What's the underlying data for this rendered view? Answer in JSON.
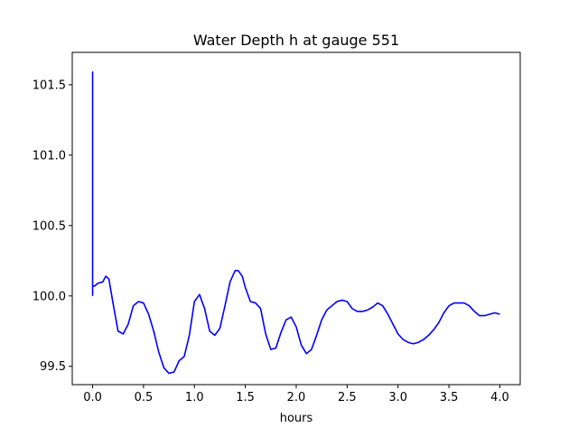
{
  "chart_data": {
    "type": "line",
    "title": "Water Depth h at gauge 551",
    "xlabel": "hours",
    "ylabel": "",
    "xlim": [
      -0.2,
      4.2
    ],
    "ylim": [
      99.37,
      101.73
    ],
    "xticks": [
      0.0,
      0.5,
      1.0,
      1.5,
      2.0,
      2.5,
      3.0,
      3.5,
      4.0
    ],
    "xtick_labels": [
      "0.0",
      "0.5",
      "1.0",
      "1.5",
      "2.0",
      "2.5",
      "3.0",
      "3.5",
      "4.0"
    ],
    "yticks": [
      99.5,
      100.0,
      100.5,
      101.0,
      101.5
    ],
    "ytick_labels": [
      "99.5",
      "100.0",
      "100.5",
      "101.0",
      "101.5"
    ],
    "grid": false,
    "series": [
      {
        "color": "#0000ff",
        "x": [
          0.0,
          0.0,
          0.0,
          0.02,
          0.05,
          0.1,
          0.13,
          0.16,
          0.2,
          0.25,
          0.3,
          0.35,
          0.4,
          0.45,
          0.5,
          0.55,
          0.6,
          0.65,
          0.7,
          0.75,
          0.8,
          0.85,
          0.9,
          0.95,
          1.0,
          1.05,
          1.1,
          1.15,
          1.2,
          1.25,
          1.3,
          1.35,
          1.4,
          1.43,
          1.47,
          1.5,
          1.55,
          1.6,
          1.65,
          1.7,
          1.75,
          1.8,
          1.85,
          1.9,
          1.95,
          2.0,
          2.05,
          2.1,
          2.15,
          2.2,
          2.25,
          2.3,
          2.35,
          2.4,
          2.45,
          2.5,
          2.55,
          2.6,
          2.65,
          2.7,
          2.75,
          2.8,
          2.85,
          2.9,
          2.95,
          3.0,
          3.05,
          3.1,
          3.15,
          3.2,
          3.25,
          3.3,
          3.35,
          3.4,
          3.45,
          3.5,
          3.55,
          3.6,
          3.65,
          3.7,
          3.75,
          3.8,
          3.85,
          3.9,
          3.95,
          4.0
        ],
        "y": [
          100.0,
          101.59,
          100.07,
          100.07,
          100.09,
          100.1,
          100.14,
          100.12,
          99.95,
          99.75,
          99.73,
          99.8,
          99.93,
          99.96,
          99.95,
          99.87,
          99.75,
          99.6,
          99.49,
          99.45,
          99.46,
          99.54,
          99.57,
          99.72,
          99.96,
          100.01,
          99.91,
          99.75,
          99.72,
          99.77,
          99.93,
          100.1,
          100.18,
          100.18,
          100.14,
          100.06,
          99.96,
          99.95,
          99.91,
          99.73,
          99.62,
          99.63,
          99.74,
          99.83,
          99.85,
          99.78,
          99.65,
          99.59,
          99.62,
          99.72,
          99.83,
          99.9,
          99.93,
          99.96,
          99.97,
          99.96,
          99.91,
          99.89,
          99.89,
          99.9,
          99.92,
          99.95,
          99.93,
          99.87,
          99.8,
          99.73,
          99.69,
          99.67,
          99.66,
          99.67,
          99.69,
          99.72,
          99.76,
          99.81,
          99.88,
          99.93,
          99.95,
          99.95,
          99.95,
          99.93,
          99.89,
          99.86,
          99.86,
          99.87,
          99.88,
          99.87
        ]
      }
    ]
  }
}
